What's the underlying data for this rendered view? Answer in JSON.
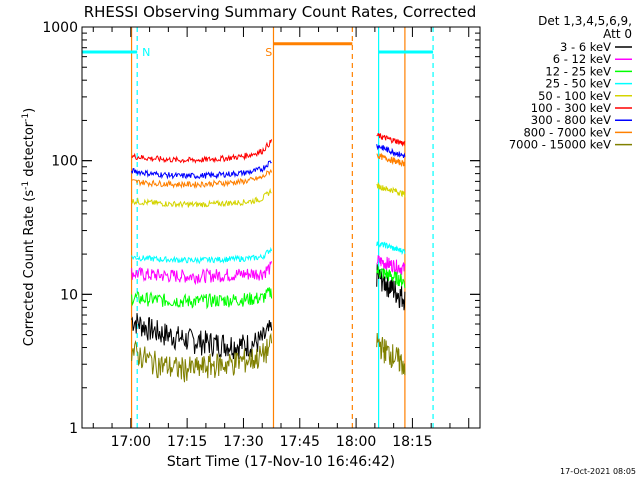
{
  "chart_data": {
    "type": "line",
    "title": "RHESSI Observing Summary Count Rates, Corrected",
    "xlabel": "Start Time (17-Nov-10 16:46:42)",
    "ylabel_main": "Corrected Count Rate (s",
    "ylabel_sup1": "-1",
    "ylabel_mid": " detector",
    "ylabel_sup2": "-1",
    "ylabel_end": ")",
    "yscale": "log",
    "ylim": [
      1,
      1000
    ],
    "xlim_min": [
      -13,
      93
    ],
    "xticks": [
      {
        "t": 0,
        "label": "17:00"
      },
      {
        "t": 15,
        "label": "17:15"
      },
      {
        "t": 30,
        "label": "17:30"
      },
      {
        "t": 45,
        "label": "17:45"
      },
      {
        "t": 60,
        "label": "18:00"
      },
      {
        "t": 75,
        "label": "18:15"
      }
    ],
    "yticks": [
      {
        "v": 1,
        "label": "1"
      },
      {
        "v": 10,
        "label": "10"
      },
      {
        "v": 100,
        "label": "100"
      },
      {
        "v": 1000,
        "label": "1000"
      }
    ],
    "legend_header": [
      "Det 1,3,4,5,6,9,",
      "Att 0"
    ],
    "legend_placement": "right",
    "series": [
      {
        "name": "3 - 6 keV",
        "color": "#000000",
        "seg1": [
          6.5,
          6.0,
          5.5,
          5.2,
          5.0,
          4.8,
          4.6,
          4.5,
          4.4,
          4.3,
          4.3,
          4.2,
          4.2,
          4.3,
          4.6,
          5.5
        ],
        "seg2": [
          14.0,
          13.0,
          12.0,
          11.0,
          10.0,
          9.5
        ]
      },
      {
        "name": "6 - 12 keV",
        "color": "#ff00ff",
        "seg1": [
          14.5,
          14.2,
          14.0,
          13.9,
          13.8,
          13.8,
          13.7,
          13.7,
          13.8,
          13.9,
          14.0,
          14.1,
          14.2,
          14.3,
          14.5,
          16.0
        ],
        "seg2": [
          18.0,
          17.5,
          17.0,
          16.5,
          16.0,
          15.5
        ]
      },
      {
        "name": "12 - 25 keV",
        "color": "#00ff00",
        "seg1": [
          9.5,
          9.3,
          9.2,
          9.1,
          9.0,
          9.0,
          8.9,
          8.9,
          9.0,
          9.0,
          9.1,
          9.1,
          9.2,
          9.3,
          9.4,
          10.5
        ],
        "seg2": [
          15.0,
          14.5,
          14.0,
          13.5,
          13.0,
          12.5
        ]
      },
      {
        "name": "25 - 50 keV",
        "color": "#00ffff",
        "seg1": [
          19.0,
          18.7,
          18.5,
          18.3,
          18.2,
          18.1,
          18.0,
          18.0,
          18.1,
          18.2,
          18.3,
          18.4,
          18.5,
          18.7,
          19.0,
          22.0
        ],
        "seg2": [
          24.0,
          23.5,
          23.0,
          22.0,
          21.5,
          21.0
        ]
      },
      {
        "name": "50 - 100 keV",
        "color": "#d4d400",
        "seg1": [
          50.0,
          49.0,
          48.5,
          48.0,
          47.5,
          47.2,
          47.0,
          47.0,
          47.2,
          47.5,
          48.0,
          48.5,
          49.0,
          50.0,
          52.0,
          60.0
        ],
        "seg2": [
          65.0,
          63.0,
          61.0,
          60.0,
          58.0,
          56.0
        ]
      },
      {
        "name": "100 - 300 keV",
        "color": "#ff0000",
        "seg1": [
          108.0,
          106.0,
          104.0,
          103.0,
          102.0,
          101.0,
          101.0,
          101.0,
          102.0,
          103.0,
          104.0,
          106.0,
          108.0,
          112.0,
          118.0,
          140.0
        ],
        "seg2": [
          155.0,
          150.0,
          146.0,
          142.0,
          138.0,
          134.0
        ]
      },
      {
        "name": "300 - 800 keV",
        "color": "#0000ff",
        "seg1": [
          84.0,
          82.0,
          80.0,
          79.0,
          78.0,
          77.0,
          77.0,
          77.0,
          77.5,
          78.0,
          79.0,
          80.0,
          81.0,
          83.0,
          87.0,
          100.0
        ],
        "seg2": [
          130.0,
          125.0,
          120.0,
          116.0,
          112.0,
          108.0
        ]
      },
      {
        "name": "800 - 7000 keV",
        "color": "#ff8000",
        "seg1": [
          70.0,
          69.0,
          68.0,
          67.5,
          67.0,
          66.5,
          66.5,
          66.5,
          67.0,
          67.5,
          68.0,
          69.0,
          70.0,
          72.0,
          75.0,
          85.0
        ],
        "seg2": [
          110.0,
          106.0,
          103.0,
          100.0,
          97.0,
          95.0
        ]
      },
      {
        "name": "7000 - 15000 keV",
        "color": "#808000",
        "seg1": [
          3.8,
          3.5,
          3.2,
          3.0,
          2.9,
          2.8,
          2.8,
          2.8,
          2.9,
          3.0,
          3.0,
          3.1,
          3.2,
          3.3,
          3.5,
          4.2
        ],
        "seg2": [
          4.5,
          4.0,
          3.7,
          3.5,
          3.2,
          3.0
        ]
      }
    ],
    "segment1_range_min": [
      0.2,
      37.5
    ],
    "segment2_range_min": [
      65.5,
      73.0
    ],
    "flag_bars": [
      {
        "name": "N",
        "color": "#00ffff",
        "range_min": [
          -13,
          1.7
        ],
        "level": 650
      },
      {
        "name": "N",
        "color": "#00ffff",
        "range_min": [
          66.0,
          80.5
        ],
        "level": 650
      },
      {
        "name": "S",
        "color": "#ff8000",
        "range_min": [
          38.0,
          59.0
        ],
        "level": 750
      }
    ],
    "vertical_lines": [
      {
        "t": 1.7,
        "color": "#00ffff",
        "style": "dashed"
      },
      {
        "t": 66.0,
        "color": "#00ffff",
        "style": "solid"
      },
      {
        "t": 80.5,
        "color": "#00ffff",
        "style": "dashed"
      },
      {
        "t": 0.2,
        "color": "#ff8000",
        "style": "solid"
      },
      {
        "t": 38.0,
        "color": "#ff8000",
        "style": "solid"
      },
      {
        "t": 59.0,
        "color": "#ff8000",
        "style": "dashed"
      },
      {
        "t": 73.0,
        "color": "#ff8000",
        "style": "solid"
      }
    ],
    "flag_labels": [
      {
        "text": "N",
        "color": "#00ffff",
        "t": 3.0
      },
      {
        "text": "S",
        "color": "#ff8000",
        "t": 35.8
      }
    ],
    "footer": "17-Oct-2021 08:05"
  }
}
